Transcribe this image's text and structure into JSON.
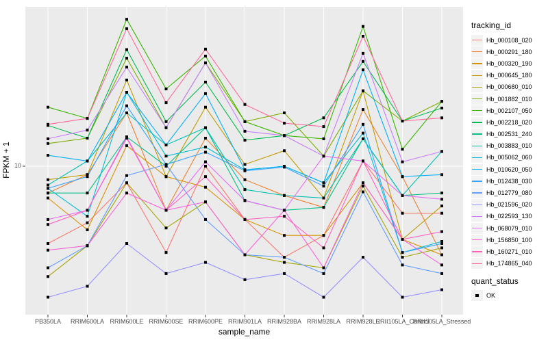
{
  "chart_data": {
    "type": "line",
    "title": "",
    "xlabel": "sample_name",
    "ylabel": "FPKM + 1",
    "y_scale": "log10",
    "y_tick_labels": [
      "10"
    ],
    "y_tick_value": 10,
    "grid": "major-white-on-grey",
    "marker": "black-square",
    "legend_position": "right",
    "categories": [
      "PB350LA",
      "RRIM600LA",
      "RRIM600LE",
      "RRIM600SE",
      "RRIM600PE",
      "RRIM901LA",
      "RRIM928BA",
      "RRIM928LA",
      "RRIM928LE",
      "RRII105LA_Control",
      "RRII105LA_Stressed"
    ],
    "series": [
      {
        "name": "Hb_000108_020",
        "color": "#F8766D",
        "values": [
          4.2,
          5.3,
          8.3,
          3.8,
          10.0,
          5.5,
          3.6,
          4.6,
          10.6,
          5.9,
          5.9
        ]
      },
      {
        "name": "Hb_000291_180",
        "color": "#EA8331",
        "values": [
          7.4,
          9.1,
          18.2,
          6.1,
          13.7,
          8.6,
          7.2,
          6.3,
          18.9,
          8.9,
          3.7
        ]
      },
      {
        "name": "Hb_000320_190",
        "color": "#D89000",
        "values": [
          7.0,
          4.9,
          12.6,
          8.9,
          7.9,
          5.5,
          4.6,
          4.6,
          8.3,
          4.4,
          3.7
        ]
      },
      {
        "name": "Hb_000645_180",
        "color": "#C09B00",
        "values": [
          8.6,
          9.1,
          26.3,
          8.9,
          19.4,
          10.2,
          11.9,
          7.0,
          23.3,
          4.4,
          6.4
        ]
      },
      {
        "name": "Hb_000680_010",
        "color": "#A3A500",
        "values": [
          2.9,
          4.1,
          8.3,
          5.0,
          6.7,
          3.7,
          3.4,
          3.2,
          8.0,
          3.6,
          4.0
        ]
      },
      {
        "name": "Hb_001882_010",
        "color": "#7CAE00",
        "values": [
          12.9,
          13.7,
          33.6,
          15.4,
          31.9,
          16.5,
          18.2,
          11.2,
          23.3,
          16.6,
          20.7
        ]
      },
      {
        "name": "Hb_002107_050",
        "color": "#39B600",
        "values": [
          19.4,
          17.1,
          52.0,
          23.8,
          34.4,
          16.5,
          14.1,
          13.6,
          48.0,
          12.1,
          20.7
        ]
      },
      {
        "name": "Hb_002218_020",
        "color": "#00BB4E",
        "values": [
          15.8,
          13.7,
          37.0,
          16.5,
          25.7,
          13.4,
          14.1,
          17.2,
          32.4,
          16.6,
          19.2
        ]
      },
      {
        "name": "Hb_002531_240",
        "color": "#00C087",
        "values": [
          7.4,
          7.4,
          13.9,
          10.0,
          15.4,
          6.8,
          6.1,
          6.3,
          13.6,
          7.2,
          7.4
        ]
      },
      {
        "name": "Hb_003883_010",
        "color": "#00C0B4",
        "values": [
          8.1,
          10.6,
          18.2,
          12.7,
          15.4,
          7.7,
          7.2,
          7.0,
          13.6,
          7.2,
          11.8
        ]
      },
      {
        "name": "Hb_005062_060",
        "color": "#00BCD8",
        "values": [
          7.8,
          5.7,
          22.9,
          11.2,
          12.4,
          9.6,
          10.0,
          8.3,
          14.5,
          3.8,
          4.3
        ]
      },
      {
        "name": "Hb_010620_050",
        "color": "#00B0F6",
        "values": [
          11.3,
          10.6,
          22.9,
          12.7,
          22.6,
          9.6,
          10.0,
          8.3,
          29.5,
          8.9,
          9.1
        ]
      },
      {
        "name": "Hb_012438_030",
        "color": "#35A2FF",
        "values": [
          7.8,
          8.9,
          19.7,
          10.2,
          11.7,
          9.5,
          9.9,
          8.0,
          16.0,
          3.8,
          4.2
        ]
      },
      {
        "name": "Hb_012779_080",
        "color": "#619CFF",
        "values": [
          3.2,
          4.1,
          9.0,
          10.2,
          5.5,
          3.7,
          3.6,
          3.0,
          7.5,
          3.3,
          3.0
        ]
      },
      {
        "name": "Hb_021596_020",
        "color": "#9590FF",
        "values": [
          2.3,
          2.6,
          4.2,
          3.0,
          3.4,
          2.8,
          3.0,
          2.3,
          3.6,
          2.3,
          2.5
        ]
      },
      {
        "name": "Hb_022593_130",
        "color": "#C77CFF",
        "values": [
          13.6,
          15.0,
          30.4,
          15.4,
          31.9,
          14.8,
          14.1,
          11.2,
          35.5,
          10.5,
          11.8
        ]
      },
      {
        "name": "Hb_068079_010",
        "color": "#E76BF3",
        "values": [
          5.5,
          6.1,
          13.9,
          6.1,
          10.5,
          6.8,
          6.1,
          11.2,
          10.6,
          7.2,
          6.9
        ]
      },
      {
        "name": "Hb_156850_100",
        "color": "#FA62DB",
        "values": [
          3.9,
          4.1,
          7.4,
          6.1,
          6.7,
          3.7,
          6.1,
          3.2,
          8.3,
          4.4,
          3.3
        ]
      },
      {
        "name": "Hb_160271_010",
        "color": "#FF61C3",
        "values": [
          5.2,
          6.1,
          13.7,
          6.1,
          8.9,
          5.5,
          5.7,
          4.0,
          10.6,
          4.4,
          4.8
        ]
      },
      {
        "name": "Hb_174865_040",
        "color": "#FF689E",
        "values": [
          16.0,
          17.1,
          46.8,
          20.4,
          37.2,
          20.0,
          16.2,
          15.6,
          43.0,
          16.6,
          17.2
        ]
      }
    ],
    "legend": {
      "tracking_title": "tracking_id",
      "quant_title": "quant_status",
      "quant_items": [
        {
          "label": "OK",
          "marker": "black-square"
        }
      ]
    },
    "colors": {
      "plot_bg": "#EBEBEB",
      "grid": "#FFFFFF",
      "tick": "#333333",
      "tick_label": "#4D4D4D",
      "marker": "#000000",
      "legend_key_bg": "#F2F2F2",
      "page_bg": "#FFFFFF"
    }
  }
}
